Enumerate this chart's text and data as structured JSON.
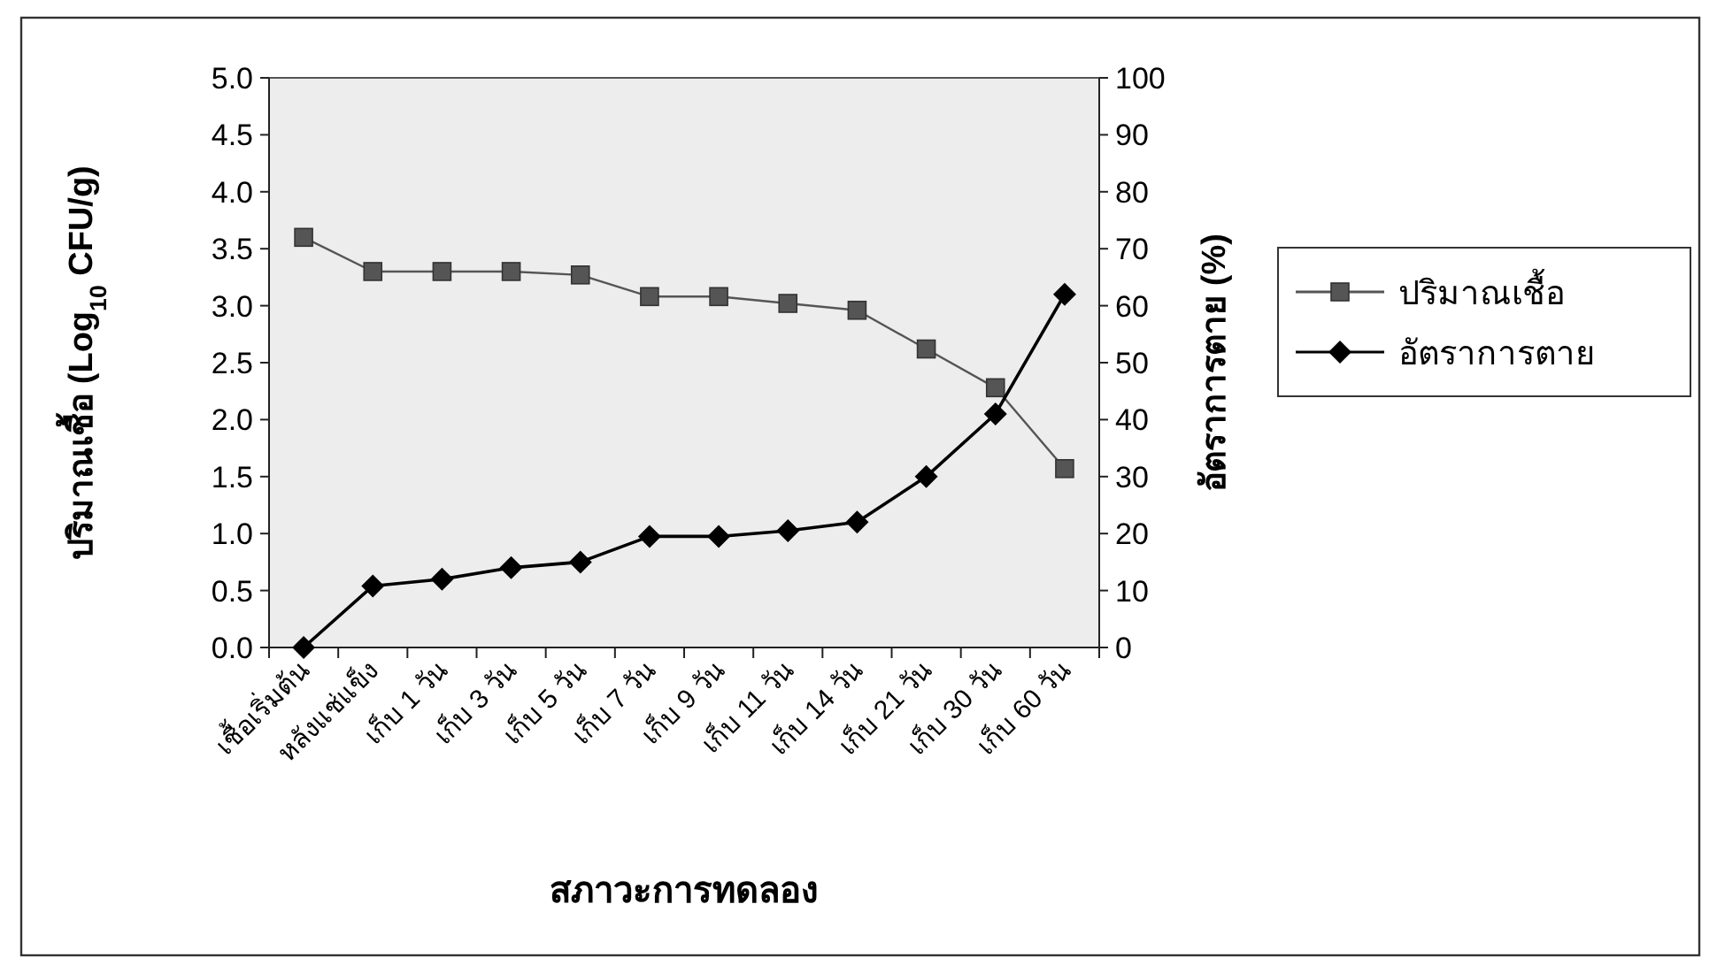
{
  "chart_data": {
    "type": "line",
    "ylabel": "ปริมาณเชื้อ (Log$_{10}$ CFU/g)",
    "y2label": "อัตราการตาย (%)",
    "xlabel": "สภาวะการทดลอง",
    "categories": [
      "เชื้อเริ่มต้น",
      "หลังแช่แข็ง",
      "เก็บ 1 วัน",
      "เก็บ 3 วัน",
      "เก็บ 5 วัน",
      "เก็บ 7 วัน",
      "เก็บ 9 วัน",
      "เก็บ 11 วัน",
      "เก็บ 14 วัน",
      "เก็บ 21 วัน",
      "เก็บ 30 วัน",
      "เก็บ 60 วัน"
    ],
    "series": [
      {
        "name": "ปริมาณเชื้อ",
        "color": "#555555",
        "marker": "square",
        "values": [
          3.6,
          3.3,
          3.3,
          3.3,
          3.27,
          3.08,
          3.08,
          3.02,
          2.96,
          2.62,
          2.28,
          1.57
        ]
      },
      {
        "name": "อัตราการตาย",
        "color": "#000000",
        "marker": "diamond",
        "axis": "y2",
        "values": [
          0,
          10.8,
          12,
          14,
          15,
          19.5,
          19.5,
          20.5,
          22,
          30,
          41,
          62
        ]
      }
    ],
    "ylim": [
      0,
      5
    ],
    "yticks": [
      {
        "value": 0,
        "label": "0.0"
      },
      {
        "value": 0.5,
        "label": "0.5"
      },
      {
        "value": 1,
        "label": "1.0"
      },
      {
        "value": 1.5,
        "label": "1.5"
      },
      {
        "value": 2,
        "label": "2.0"
      },
      {
        "value": 2.5,
        "label": "2.5"
      },
      {
        "value": 3,
        "label": "3.0"
      },
      {
        "value": 3.5,
        "label": "3.5"
      },
      {
        "value": 4,
        "label": "4.0"
      },
      {
        "value": 4.5,
        "label": "4.5"
      },
      {
        "value": 5,
        "label": "5.0"
      }
    ],
    "y2lim": [
      0,
      100
    ],
    "y2ticks": [
      0,
      10,
      20,
      30,
      40,
      50,
      60,
      70,
      80,
      90,
      100
    ],
    "grid": false,
    "legend": "right",
    "line_style": "solid"
  }
}
